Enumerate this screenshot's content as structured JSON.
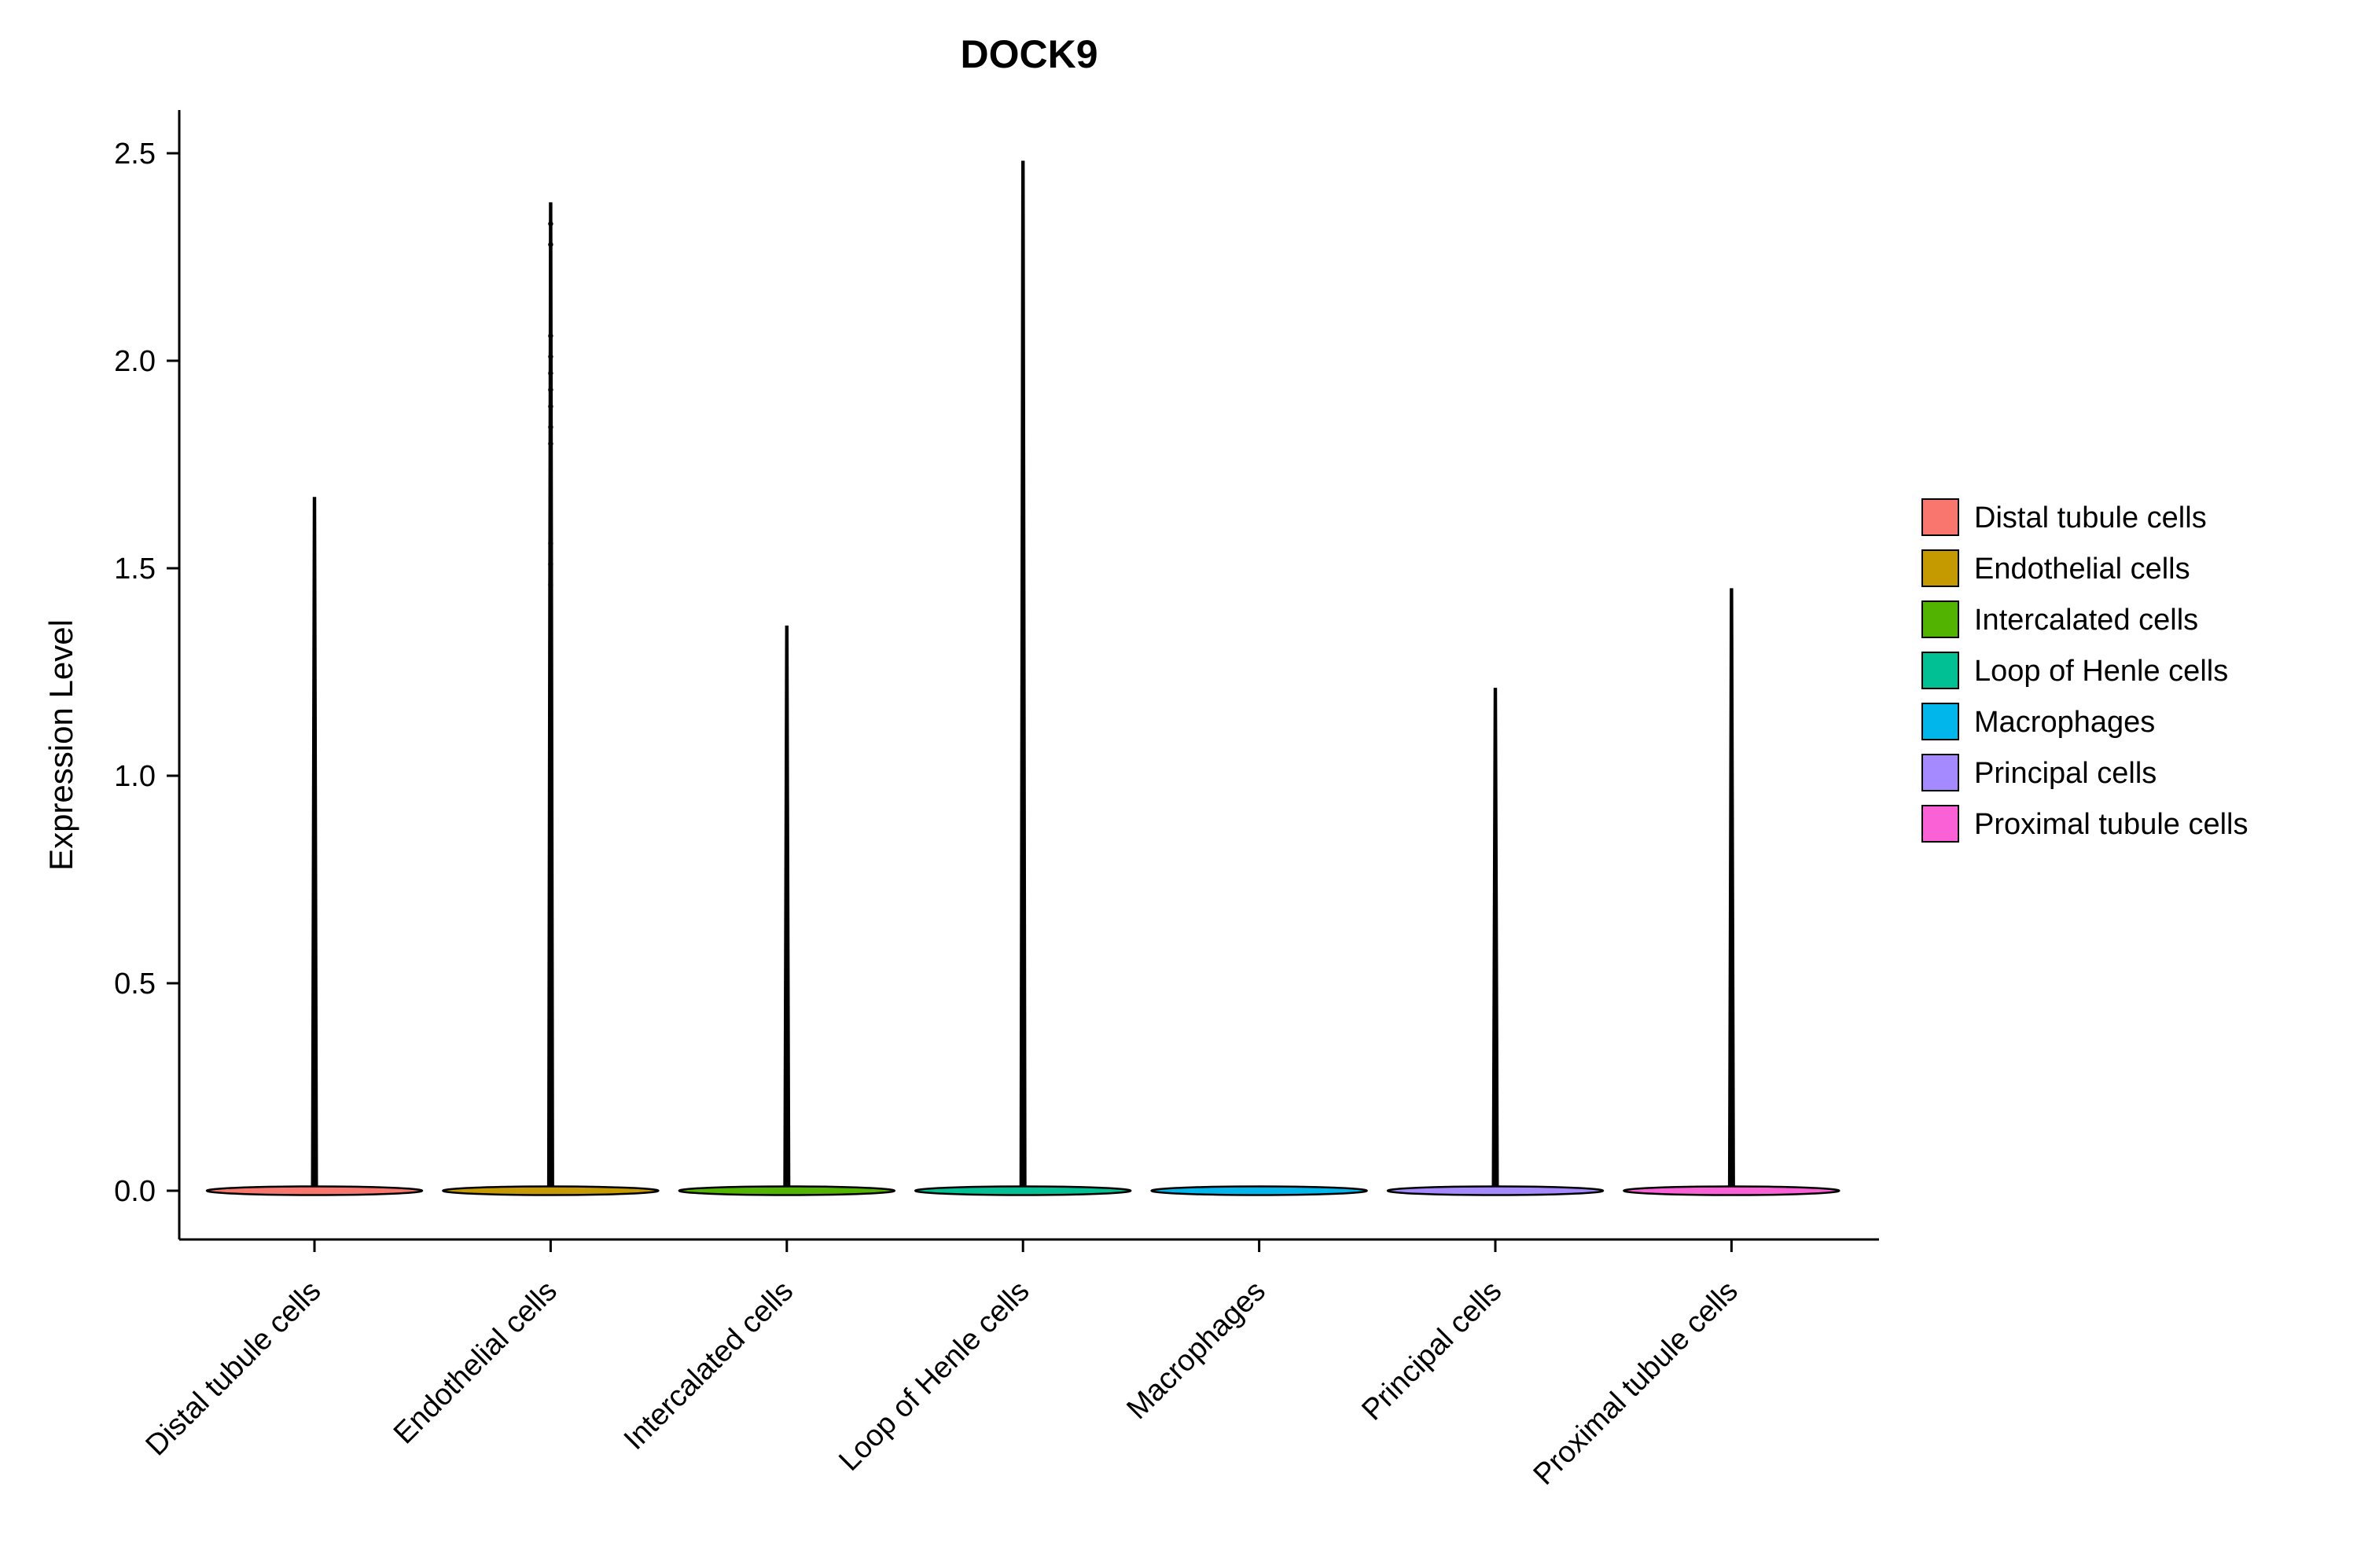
{
  "chart_data": {
    "type": "violin",
    "title": "DOCK9",
    "ylabel": "Expression Level",
    "xlabel": "",
    "grid": false,
    "ylim": [
      -0.06,
      2.62
    ],
    "y_ticks": [
      {
        "label": "0.0",
        "value": 0.0
      },
      {
        "label": "0.5",
        "value": 0.5
      },
      {
        "label": "1.0",
        "value": 1.0
      },
      {
        "label": "1.5",
        "value": 1.5
      },
      {
        "label": "2.0",
        "value": 2.0
      },
      {
        "label": "2.5",
        "value": 2.5
      }
    ],
    "categories": [
      "Distal tubule cells",
      "Endothelial cells",
      "Intercalated cells",
      "Loop of Henle cells",
      "Macrophages",
      "Principal cells",
      "Proximal tubule cells"
    ],
    "violins": [
      {
        "category": "Distal tubule cells",
        "color": "#F8766D",
        "baseline": 0.0,
        "max": 1.67,
        "points": []
      },
      {
        "category": "Endothelial cells",
        "color": "#C49A00",
        "baseline": 0.0,
        "max": 2.38,
        "points": [
          2.33,
          2.28,
          2.06,
          2.01,
          1.97,
          1.93,
          1.89,
          1.84,
          1.8,
          1.56,
          1.51,
          1.46,
          1.11,
          1.06,
          0.96
        ]
      },
      {
        "category": "Intercalated cells",
        "color": "#53B400",
        "baseline": 0.0,
        "max": 1.36,
        "points": []
      },
      {
        "category": "Loop of Henle cells",
        "color": "#00C094",
        "baseline": 0.0,
        "max": 2.48,
        "points": []
      },
      {
        "category": "Macrophages",
        "color": "#00B6EB",
        "baseline": 0.0,
        "max": 0.0,
        "points": []
      },
      {
        "category": "Principal cells",
        "color": "#A58AFF",
        "baseline": 0.0,
        "max": 1.21,
        "points": []
      },
      {
        "category": "Proximal tubule cells",
        "color": "#FB61D7",
        "baseline": 0.0,
        "max": 1.45,
        "points": []
      }
    ],
    "legend": {
      "position": "right",
      "entries": [
        {
          "label": "Distal tubule cells",
          "color": "#F8766D"
        },
        {
          "label": "Endothelial cells",
          "color": "#C49A00"
        },
        {
          "label": "Intercalated cells",
          "color": "#53B400"
        },
        {
          "label": "Loop of Henle cells",
          "color": "#00C094"
        },
        {
          "label": "Macrophages",
          "color": "#00B6EB"
        },
        {
          "label": "Principal cells",
          "color": "#A58AFF"
        },
        {
          "label": "Proximal tubule cells",
          "color": "#FB61D7"
        }
      ]
    }
  }
}
